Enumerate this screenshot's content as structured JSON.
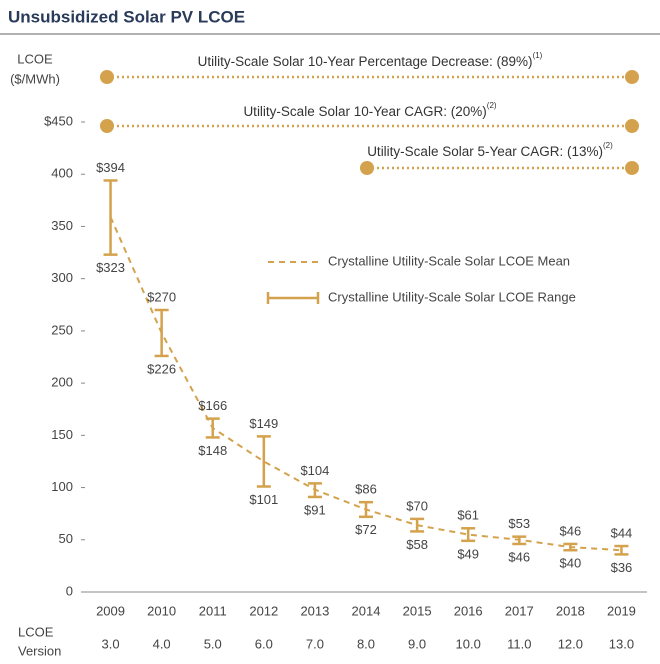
{
  "chart_data": {
    "type": "range_line",
    "title": "Unsubsidized Solar PV LCOE",
    "y_label": [
      "LCOE",
      "($/MWh)"
    ],
    "x_label": [
      "LCOE",
      "Version"
    ],
    "categories": [
      "2009",
      "2010",
      "2011",
      "2012",
      "2013",
      "2014",
      "2015",
      "2016",
      "2017",
      "2018",
      "2019"
    ],
    "version_labels": [
      "3.0",
      "4.0",
      "5.0",
      "6.0",
      "7.0",
      "8.0",
      "9.0",
      "10.0",
      "11.0",
      "12.0",
      "13.0"
    ],
    "ylim": [
      0,
      450
    ],
    "yticks": [
      0,
      50,
      100,
      150,
      200,
      250,
      300,
      350,
      400,
      {
        "value": 450,
        "label": "$450"
      }
    ],
    "color": "#d4a24c",
    "series": [
      {
        "name": "Crystalline Utility-Scale Solar LCOE Mean",
        "style": "dashed",
        "values": [
          359,
          248,
          157,
          125,
          98,
          79,
          64,
          55,
          50,
          43,
          40
        ]
      },
      {
        "name": "Crystalline Utility-Scale Solar LCOE Range",
        "style": "range",
        "low": [
          323,
          226,
          148,
          101,
          91,
          72,
          58,
          49,
          46,
          40,
          36
        ],
        "high": [
          394,
          270,
          166,
          149,
          104,
          86,
          70,
          61,
          53,
          46,
          44
        ],
        "low_labels": [
          "$323",
          "$226",
          "$148",
          "$101",
          "$91",
          "$72",
          "$58",
          "$49",
          "$46",
          "$40",
          "$36"
        ],
        "high_labels": [
          "$394",
          "$270",
          "$166",
          "$149",
          "$104",
          "$86",
          "$70",
          "$61",
          "$53",
          "$46",
          "$44"
        ]
      }
    ],
    "annotations": [
      {
        "text": "Utility-Scale Solar 10-Year Percentage Decrease: (89%)",
        "note": "(1)"
      },
      {
        "text": "Utility-Scale Solar 10-Year CAGR: (20%)",
        "note": "(2)"
      },
      {
        "text": "Utility-Scale Solar 5-Year CAGR: (13%)",
        "note": "(2)"
      }
    ]
  }
}
